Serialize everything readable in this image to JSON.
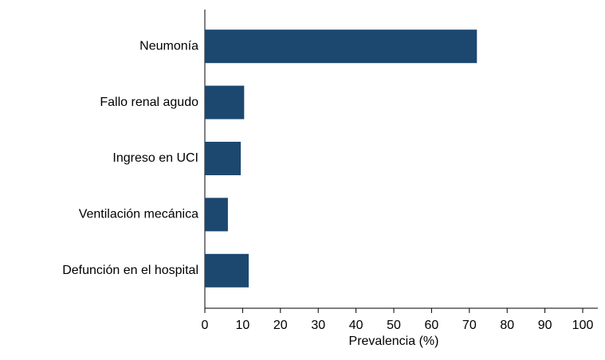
{
  "chart_data": {
    "type": "bar",
    "orientation": "horizontal",
    "categories": [
      "Neumonía",
      "Fallo renal agudo",
      "Ingreso en UCI",
      "Ventilación mecánica",
      "Defunción en el hospital"
    ],
    "values": [
      72,
      10.4,
      9.5,
      6.1,
      11.6
    ],
    "color": "#1c4870",
    "xlabel": "Prevalencia (%)",
    "xlim": [
      0,
      104
    ],
    "xticks": [
      0,
      10,
      20,
      30,
      40,
      50,
      60,
      70,
      80,
      90,
      100
    ]
  }
}
